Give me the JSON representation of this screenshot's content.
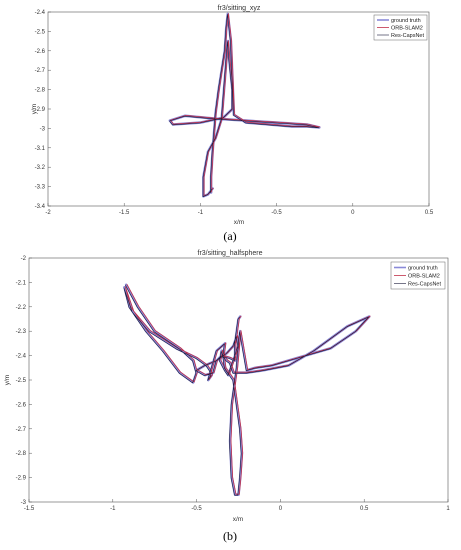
{
  "captions": [
    "(a)",
    "(b)"
  ],
  "colors": {
    "ground_truth": "#8a8ad8",
    "orb_slam2": "#c0304a",
    "res_capsnet": "#1a1a3a"
  },
  "chart_data": [
    {
      "type": "line",
      "title": "fr3/sitting_xyz",
      "xlabel": "x/m",
      "ylabel": "y/m",
      "xlim": [
        -2,
        0.5
      ],
      "ylim": [
        -3.4,
        -2.4
      ],
      "xticks": [
        -2,
        -1.5,
        -1,
        -0.5,
        0,
        0.5
      ],
      "xticklabels": [
        "-2",
        "-1.5",
        "-1",
        "-0.5",
        "0",
        "0.5"
      ],
      "yticks": [
        -3.4,
        -3.3,
        -3.2,
        -3.1,
        -3.0,
        -2.9,
        -2.8,
        -2.7,
        -2.6,
        -2.5,
        -2.4
      ],
      "yticklabels": [
        "-3.4",
        "-3.3",
        "-3.2",
        "-3.1",
        "-3",
        "-2.9",
        "-2.8",
        "-2.7",
        "-2.6",
        "-2.5",
        "-2.4"
      ],
      "legend_position": "top-right",
      "series": [
        {
          "name": "ground truth",
          "color": "#8a8ad8",
          "width": 2.6,
          "offset": [
            0,
            0
          ]
        },
        {
          "name": "ORB-SLAM2",
          "color": "#c0304a",
          "width": 0.8,
          "offset": [
            0.004,
            0.002
          ]
        },
        {
          "name": "Res-CapsNet",
          "color": "#1a1a3a",
          "width": 0.6,
          "offset": [
            -0.003,
            -0.002
          ]
        }
      ],
      "x": [
        -0.93,
        -0.93,
        -0.92,
        -0.91,
        -0.9,
        -0.88,
        -0.86,
        -0.84,
        -0.83,
        -0.82,
        -0.8,
        -0.78,
        -0.7,
        -0.55,
        -0.4,
        -0.3,
        -0.22,
        -0.3,
        -0.5,
        -0.7,
        -0.9,
        -1.1,
        -1.2,
        -1.18,
        -1.0,
        -0.85,
        -0.79,
        -0.79,
        -0.81,
        -0.82,
        -0.84,
        -0.86,
        -0.9,
        -0.95,
        -0.98,
        -0.98,
        -0.95,
        -0.92
      ],
      "y": [
        -3.33,
        -3.25,
        -3.12,
        -3.02,
        -2.92,
        -2.8,
        -2.7,
        -2.6,
        -2.48,
        -2.41,
        -2.55,
        -2.93,
        -2.97,
        -2.98,
        -2.99,
        -2.99,
        -2.995,
        -2.98,
        -2.97,
        -2.96,
        -2.95,
        -2.935,
        -2.96,
        -2.98,
        -2.97,
        -2.945,
        -2.9,
        -2.8,
        -2.65,
        -2.55,
        -2.75,
        -2.95,
        -3.05,
        -3.12,
        -3.25,
        -3.35,
        -3.34,
        -3.31
      ]
    },
    {
      "type": "line",
      "title": "fr3/sitting_halfsphere",
      "xlabel": "x/m",
      "ylabel": "y/m",
      "xlim": [
        -1.5,
        1
      ],
      "ylim": [
        -3,
        -2
      ],
      "xticks": [
        -1.5,
        -1,
        -0.5,
        0,
        0.5,
        1
      ],
      "xticklabels": [
        "-1.5",
        "-1",
        "-0.5",
        "0",
        "0.5",
        "1"
      ],
      "yticks": [
        -3,
        -2.9,
        -2.8,
        -2.7,
        -2.6,
        -2.5,
        -2.4,
        -2.3,
        -2.2,
        -2.1,
        -2
      ],
      "yticklabels": [
        "-3",
        "-2.9",
        "-2.8",
        "-2.7",
        "-2.6",
        "-2.5",
        "-2.4",
        "-2.3",
        "-2.2",
        "-2.1",
        "-2"
      ],
      "legend_position": "top-right",
      "series": [
        {
          "name": "ground truth",
          "color": "#8a8ad8",
          "width": 2.6,
          "offset": [
            0,
            0
          ]
        },
        {
          "name": "ORB-SLAM2",
          "color": "#c0304a",
          "width": 0.8,
          "offset": [
            0.005,
            0.002
          ]
        },
        {
          "name": "Res-CapsNet",
          "color": "#1a1a3a",
          "width": 0.6,
          "offset": [
            -0.004,
            -0.002
          ]
        }
      ],
      "x": [
        -0.92,
        -0.85,
        -0.75,
        -0.6,
        -0.52,
        -0.5,
        -0.52,
        -0.6,
        -0.7,
        -0.8,
        -0.9,
        -0.93,
        -0.88,
        -0.78,
        -0.62,
        -0.5,
        -0.44,
        -0.42,
        -0.41,
        -0.43,
        -0.38,
        -0.33,
        -0.34,
        -0.33,
        -0.28,
        -0.26,
        -0.24,
        -0.23,
        -0.24,
        -0.25,
        -0.27,
        -0.29,
        -0.3,
        -0.29,
        -0.26,
        -0.24,
        -0.2,
        -0.15,
        -0.05,
        0.1,
        0.3,
        0.45,
        0.53,
        0.4,
        0.2,
        0.05,
        -0.1,
        -0.2,
        -0.28,
        -0.3,
        -0.32,
        -0.34,
        -0.35,
        -0.36,
        -0.33,
        -0.31,
        -0.27,
        -0.25,
        -0.26,
        -0.28,
        -0.32,
        -0.38,
        -0.45,
        -0.5,
        -0.45,
        -0.4,
        -0.38,
        -0.35,
        -0.3,
        -0.27,
        -0.27,
        -0.26,
        -0.25,
        -0.24
      ],
      "y": [
        -2.11,
        -2.2,
        -2.3,
        -2.37,
        -2.42,
        -2.47,
        -2.51,
        -2.47,
        -2.38,
        -2.3,
        -2.2,
        -2.12,
        -2.22,
        -2.3,
        -2.37,
        -2.41,
        -2.44,
        -2.46,
        -2.48,
        -2.5,
        -2.38,
        -2.35,
        -2.4,
        -2.45,
        -2.5,
        -2.6,
        -2.7,
        -2.8,
        -2.9,
        -2.97,
        -2.97,
        -2.9,
        -2.75,
        -2.6,
        -2.45,
        -2.3,
        -2.46,
        -2.45,
        -2.44,
        -2.41,
        -2.37,
        -2.3,
        -2.24,
        -2.28,
        -2.38,
        -2.44,
        -2.46,
        -2.47,
        -2.47,
        -2.43,
        -2.42,
        -2.4,
        -2.38,
        -2.42,
        -2.46,
        -2.48,
        -2.4,
        -2.36,
        -2.32,
        -2.36,
        -2.39,
        -2.42,
        -2.44,
        -2.46,
        -2.48,
        -2.47,
        -2.42,
        -2.4,
        -2.41,
        -2.42,
        -2.35,
        -2.3,
        -2.25,
        -2.24
      ]
    }
  ]
}
